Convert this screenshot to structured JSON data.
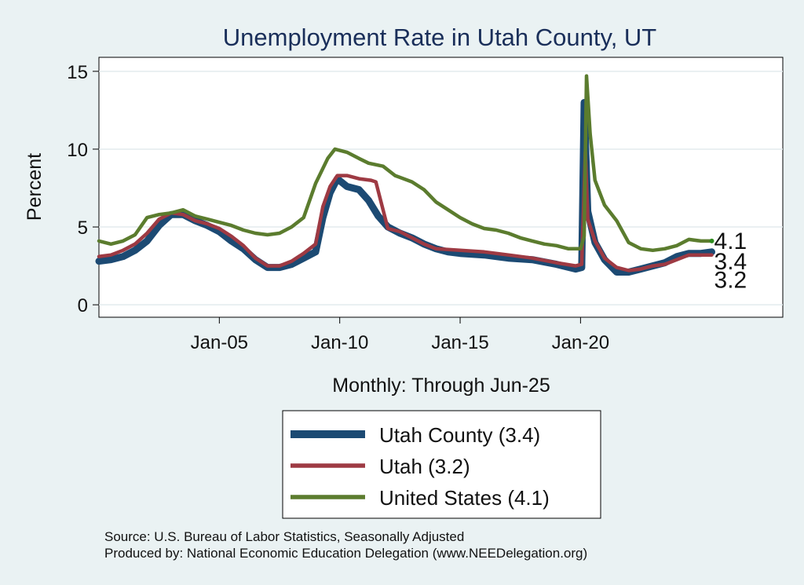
{
  "chart_data": {
    "type": "line",
    "title": "Unemployment Rate in Utah  County, UT",
    "xlabel": "Monthly: Through Jun-25",
    "ylabel": "Percent",
    "x_range": [
      2000.0,
      2028.4
    ],
    "ylim": [
      -0.8,
      15.9
    ],
    "x_ticks": [
      {
        "label": "Jan-05",
        "x": 2005.0
      },
      {
        "label": "Jan-10",
        "x": 2010.0
      },
      {
        "label": "Jan-15",
        "x": 2015.0
      },
      {
        "label": "Jan-20",
        "x": 2020.0
      }
    ],
    "y_ticks": [
      0,
      5,
      10,
      15
    ],
    "grid": "horizontal",
    "series": [
      {
        "name": "Utah  County (3.4)",
        "color": "#1c4a73",
        "end_label": "3.4",
        "points": [
          [
            2000.0,
            2.8
          ],
          [
            2000.5,
            2.9
          ],
          [
            2001.0,
            3.1
          ],
          [
            2001.5,
            3.5
          ],
          [
            2002.0,
            4.1
          ],
          [
            2002.5,
            5.1
          ],
          [
            2003.0,
            5.8
          ],
          [
            2003.5,
            5.8
          ],
          [
            2004.0,
            5.4
          ],
          [
            2004.5,
            5.1
          ],
          [
            2005.0,
            4.7
          ],
          [
            2005.5,
            4.1
          ],
          [
            2006.0,
            3.6
          ],
          [
            2006.5,
            2.9
          ],
          [
            2007.0,
            2.4
          ],
          [
            2007.5,
            2.4
          ],
          [
            2008.0,
            2.6
          ],
          [
            2008.5,
            3.0
          ],
          [
            2009.0,
            3.4
          ],
          [
            2009.3,
            5.6
          ],
          [
            2009.6,
            7.2
          ],
          [
            2009.9,
            8.1
          ],
          [
            2010.3,
            7.6
          ],
          [
            2010.8,
            7.4
          ],
          [
            2011.2,
            6.7
          ],
          [
            2011.6,
            5.7
          ],
          [
            2012.0,
            5.0
          ],
          [
            2012.5,
            4.6
          ],
          [
            2013.0,
            4.3
          ],
          [
            2013.5,
            3.9
          ],
          [
            2014.0,
            3.6
          ],
          [
            2014.5,
            3.4
          ],
          [
            2015.0,
            3.3
          ],
          [
            2016.0,
            3.2
          ],
          [
            2017.0,
            3.0
          ],
          [
            2018.0,
            2.9
          ],
          [
            2019.0,
            2.6
          ],
          [
            2019.8,
            2.3
          ],
          [
            2020.05,
            2.4
          ],
          [
            2020.15,
            13.0
          ],
          [
            2020.3,
            6.0
          ],
          [
            2020.6,
            4.0
          ],
          [
            2021.0,
            2.9
          ],
          [
            2021.5,
            2.1
          ],
          [
            2022.0,
            2.1
          ],
          [
            2022.5,
            2.3
          ],
          [
            2023.0,
            2.5
          ],
          [
            2023.5,
            2.7
          ],
          [
            2024.0,
            3.1
          ],
          [
            2024.5,
            3.3
          ],
          [
            2025.0,
            3.3
          ],
          [
            2025.45,
            3.4
          ]
        ]
      },
      {
        "name": "Utah (3.2)",
        "color": "#9e3a43",
        "end_label": "3.2",
        "points": [
          [
            2000.0,
            3.1
          ],
          [
            2000.5,
            3.2
          ],
          [
            2001.0,
            3.5
          ],
          [
            2001.5,
            3.9
          ],
          [
            2002.0,
            4.6
          ],
          [
            2002.5,
            5.5
          ],
          [
            2003.0,
            5.9
          ],
          [
            2003.5,
            5.8
          ],
          [
            2004.0,
            5.4
          ],
          [
            2004.5,
            5.2
          ],
          [
            2005.0,
            4.9
          ],
          [
            2005.5,
            4.4
          ],
          [
            2006.0,
            3.8
          ],
          [
            2006.5,
            3.0
          ],
          [
            2007.0,
            2.5
          ],
          [
            2007.5,
            2.5
          ],
          [
            2008.0,
            2.8
          ],
          [
            2008.5,
            3.3
          ],
          [
            2009.0,
            3.9
          ],
          [
            2009.3,
            6.3
          ],
          [
            2009.6,
            7.6
          ],
          [
            2009.9,
            8.3
          ],
          [
            2010.3,
            8.3
          ],
          [
            2010.8,
            8.1
          ],
          [
            2011.3,
            8.0
          ],
          [
            2011.5,
            7.9
          ],
          [
            2012.0,
            4.9
          ],
          [
            2012.5,
            4.7
          ],
          [
            2013.0,
            4.3
          ],
          [
            2013.5,
            3.9
          ],
          [
            2014.0,
            3.6
          ],
          [
            2015.0,
            3.5
          ],
          [
            2016.0,
            3.4
          ],
          [
            2017.0,
            3.2
          ],
          [
            2018.0,
            3.0
          ],
          [
            2019.0,
            2.7
          ],
          [
            2019.8,
            2.5
          ],
          [
            2020.05,
            2.6
          ],
          [
            2020.2,
            9.8
          ],
          [
            2020.3,
            5.5
          ],
          [
            2020.6,
            4.1
          ],
          [
            2021.0,
            3.0
          ],
          [
            2021.5,
            2.4
          ],
          [
            2022.0,
            2.2
          ],
          [
            2022.5,
            2.3
          ],
          [
            2023.0,
            2.5
          ],
          [
            2023.5,
            2.6
          ],
          [
            2024.0,
            2.9
          ],
          [
            2024.5,
            3.2
          ],
          [
            2025.0,
            3.2
          ],
          [
            2025.45,
            3.2
          ]
        ]
      },
      {
        "name": "United States (4.1)",
        "color": "#5b7c2e",
        "end_label": "4.1",
        "points": [
          [
            2000.0,
            4.1
          ],
          [
            2000.5,
            3.9
          ],
          [
            2001.0,
            4.1
          ],
          [
            2001.5,
            4.5
          ],
          [
            2002.0,
            5.6
          ],
          [
            2002.5,
            5.8
          ],
          [
            2003.0,
            5.9
          ],
          [
            2003.5,
            6.1
          ],
          [
            2004.0,
            5.7
          ],
          [
            2004.5,
            5.5
          ],
          [
            2005.0,
            5.3
          ],
          [
            2005.5,
            5.1
          ],
          [
            2006.0,
            4.8
          ],
          [
            2006.5,
            4.6
          ],
          [
            2007.0,
            4.5
          ],
          [
            2007.5,
            4.6
          ],
          [
            2008.0,
            5.0
          ],
          [
            2008.5,
            5.6
          ],
          [
            2009.0,
            7.8
          ],
          [
            2009.5,
            9.4
          ],
          [
            2009.8,
            10.0
          ],
          [
            2010.3,
            9.8
          ],
          [
            2010.8,
            9.4
          ],
          [
            2011.2,
            9.1
          ],
          [
            2011.8,
            8.9
          ],
          [
            2012.3,
            8.3
          ],
          [
            2013.0,
            7.9
          ],
          [
            2013.5,
            7.4
          ],
          [
            2014.0,
            6.6
          ],
          [
            2014.5,
            6.1
          ],
          [
            2015.0,
            5.6
          ],
          [
            2015.5,
            5.2
          ],
          [
            2016.0,
            4.9
          ],
          [
            2016.5,
            4.8
          ],
          [
            2017.0,
            4.6
          ],
          [
            2017.5,
            4.3
          ],
          [
            2018.0,
            4.1
          ],
          [
            2018.5,
            3.9
          ],
          [
            2019.0,
            3.8
          ],
          [
            2019.5,
            3.6
          ],
          [
            2020.0,
            3.6
          ],
          [
            2020.15,
            4.4
          ],
          [
            2020.25,
            14.7
          ],
          [
            2020.4,
            11.0
          ],
          [
            2020.6,
            8.0
          ],
          [
            2021.0,
            6.4
          ],
          [
            2021.5,
            5.4
          ],
          [
            2022.0,
            4.0
          ],
          [
            2022.5,
            3.6
          ],
          [
            2023.0,
            3.5
          ],
          [
            2023.5,
            3.6
          ],
          [
            2024.0,
            3.8
          ],
          [
            2024.5,
            4.2
          ],
          [
            2025.0,
            4.1
          ],
          [
            2025.45,
            4.1
          ]
        ]
      }
    ],
    "source_note": "Source: U.S. Bureau of Labor Statistics, Seasonally Adjusted",
    "credit_note": "Produced by: National Economic Education Delegation (www.NEEDelegation.org)"
  }
}
